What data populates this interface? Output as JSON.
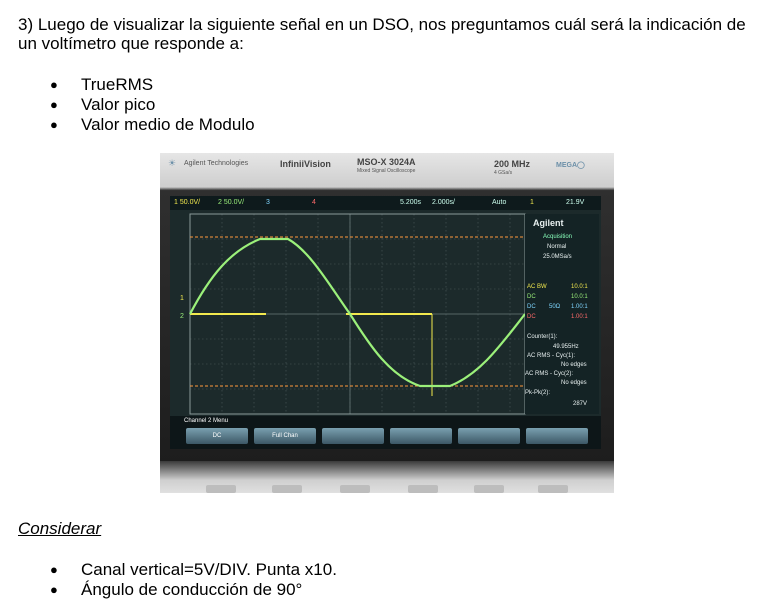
{
  "question": {
    "text": "3) Luego de visualizar la siguiente señal en un DSO, nos preguntamos cuál será la indicación de un voltímetro que responde a:",
    "items": [
      "TrueRMS",
      "Valor pico",
      "Valor medio de Modulo"
    ]
  },
  "consider": {
    "heading": "Considerar",
    "items": [
      "Canal vertical=5V/DIV. Punta x10.",
      "Ángulo de conducción de 90°"
    ]
  },
  "scope": {
    "brand": "Agilent Technologies",
    "series": "InfiniiVision",
    "model": "MSO-X 3024A",
    "model_sub": "Mixed Signal Oscilloscope",
    "bandwidth": "200 MHz",
    "sample_rate_top": "4 GSa/s",
    "status": {
      "ch1": "1  50.0V/",
      "ch2": "2  50.0V/",
      "ch3": "3",
      "ch4": "4",
      "time_pos": "5.200s",
      "time_div": "2.000s/",
      "trigger": "Auto",
      "trig_src": "1",
      "trig_level": "21.9V"
    },
    "panel": {
      "logo": "Agilent",
      "acq": "Acquisition",
      "mode": "Normal",
      "rate": "25.0MSa/s",
      "channels": [
        {
          "coupling": "AC BW",
          "imp": "",
          "ratio": "10.0:1",
          "color": "#f2e94e"
        },
        {
          "coupling": "DC",
          "imp": "",
          "ratio": "10.0:1",
          "color": "#9bf07a"
        },
        {
          "coupling": "DC",
          "imp": "50Ω",
          "ratio": "1.00:1",
          "color": "#7fd6ff"
        },
        {
          "coupling": "DC",
          "imp": "",
          "ratio": "1.00:1",
          "color": "#ff6a6a"
        }
      ],
      "counter_label": "Counter(1):",
      "counter_value": "49.955Hz",
      "m1_label": "AC RMS - Cyc(1):",
      "m1_value": "No edges",
      "m2_label": "AC RMS - Cyc(2):",
      "m2_value": "No edges",
      "m3_label": "Pk-Pk(2):",
      "m3_value": "287V"
    },
    "menu_title": "Channel 2 Menu",
    "softkeys": [
      "DC",
      "Full Chan",
      "",
      "",
      "",
      ""
    ],
    "colors": {
      "ch1": "#f2e94e",
      "ch2": "#9bf07a",
      "cursor": "#ff9a3c"
    }
  }
}
